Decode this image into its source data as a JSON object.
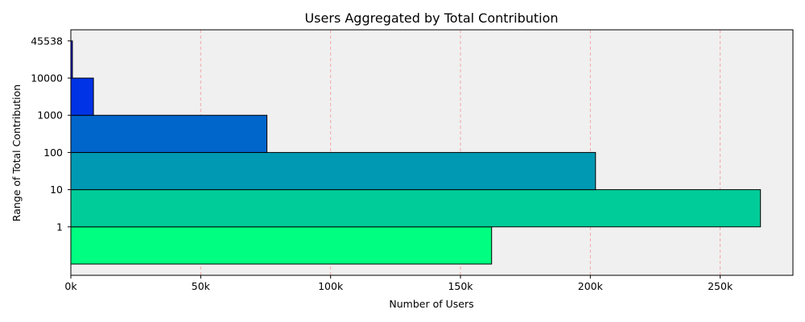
{
  "chart_data": {
    "type": "bar",
    "orientation": "horizontal",
    "title": "Users Aggregated by Total Contribution",
    "xlabel": "Number of Users",
    "ylabel": "Range of Total Contribution",
    "y_tick_labels": [
      "1",
      "10",
      "100",
      "1000",
      "10000",
      "45538"
    ],
    "x_ticks": [
      0,
      50000,
      100000,
      150000,
      200000,
      250000
    ],
    "x_tick_labels": [
      "0k",
      "50k",
      "100k",
      "150k",
      "200k",
      "250k"
    ],
    "xlim": [
      0,
      278000
    ],
    "bins": [
      {
        "from": 0,
        "to": 1,
        "value": 162000,
        "color": "#00ff80"
      },
      {
        "from": 1,
        "to": 10,
        "value": 265500,
        "color": "#00cc99"
      },
      {
        "from": 10,
        "to": 100,
        "value": 202000,
        "color": "#0099b3"
      },
      {
        "from": 100,
        "to": 1000,
        "value": 75500,
        "color": "#0066cc"
      },
      {
        "from": 1000,
        "to": 10000,
        "value": 8700,
        "color": "#0033e6"
      },
      {
        "from": 10000,
        "to": 45538,
        "value": 600,
        "color": "#0000ff"
      }
    ],
    "grid": {
      "axis": "x",
      "style": "dashed",
      "color": "#f4a0a0"
    },
    "plot_background": "#f0f0f0",
    "bar_edge_color": "#000000",
    "legend": "none"
  }
}
